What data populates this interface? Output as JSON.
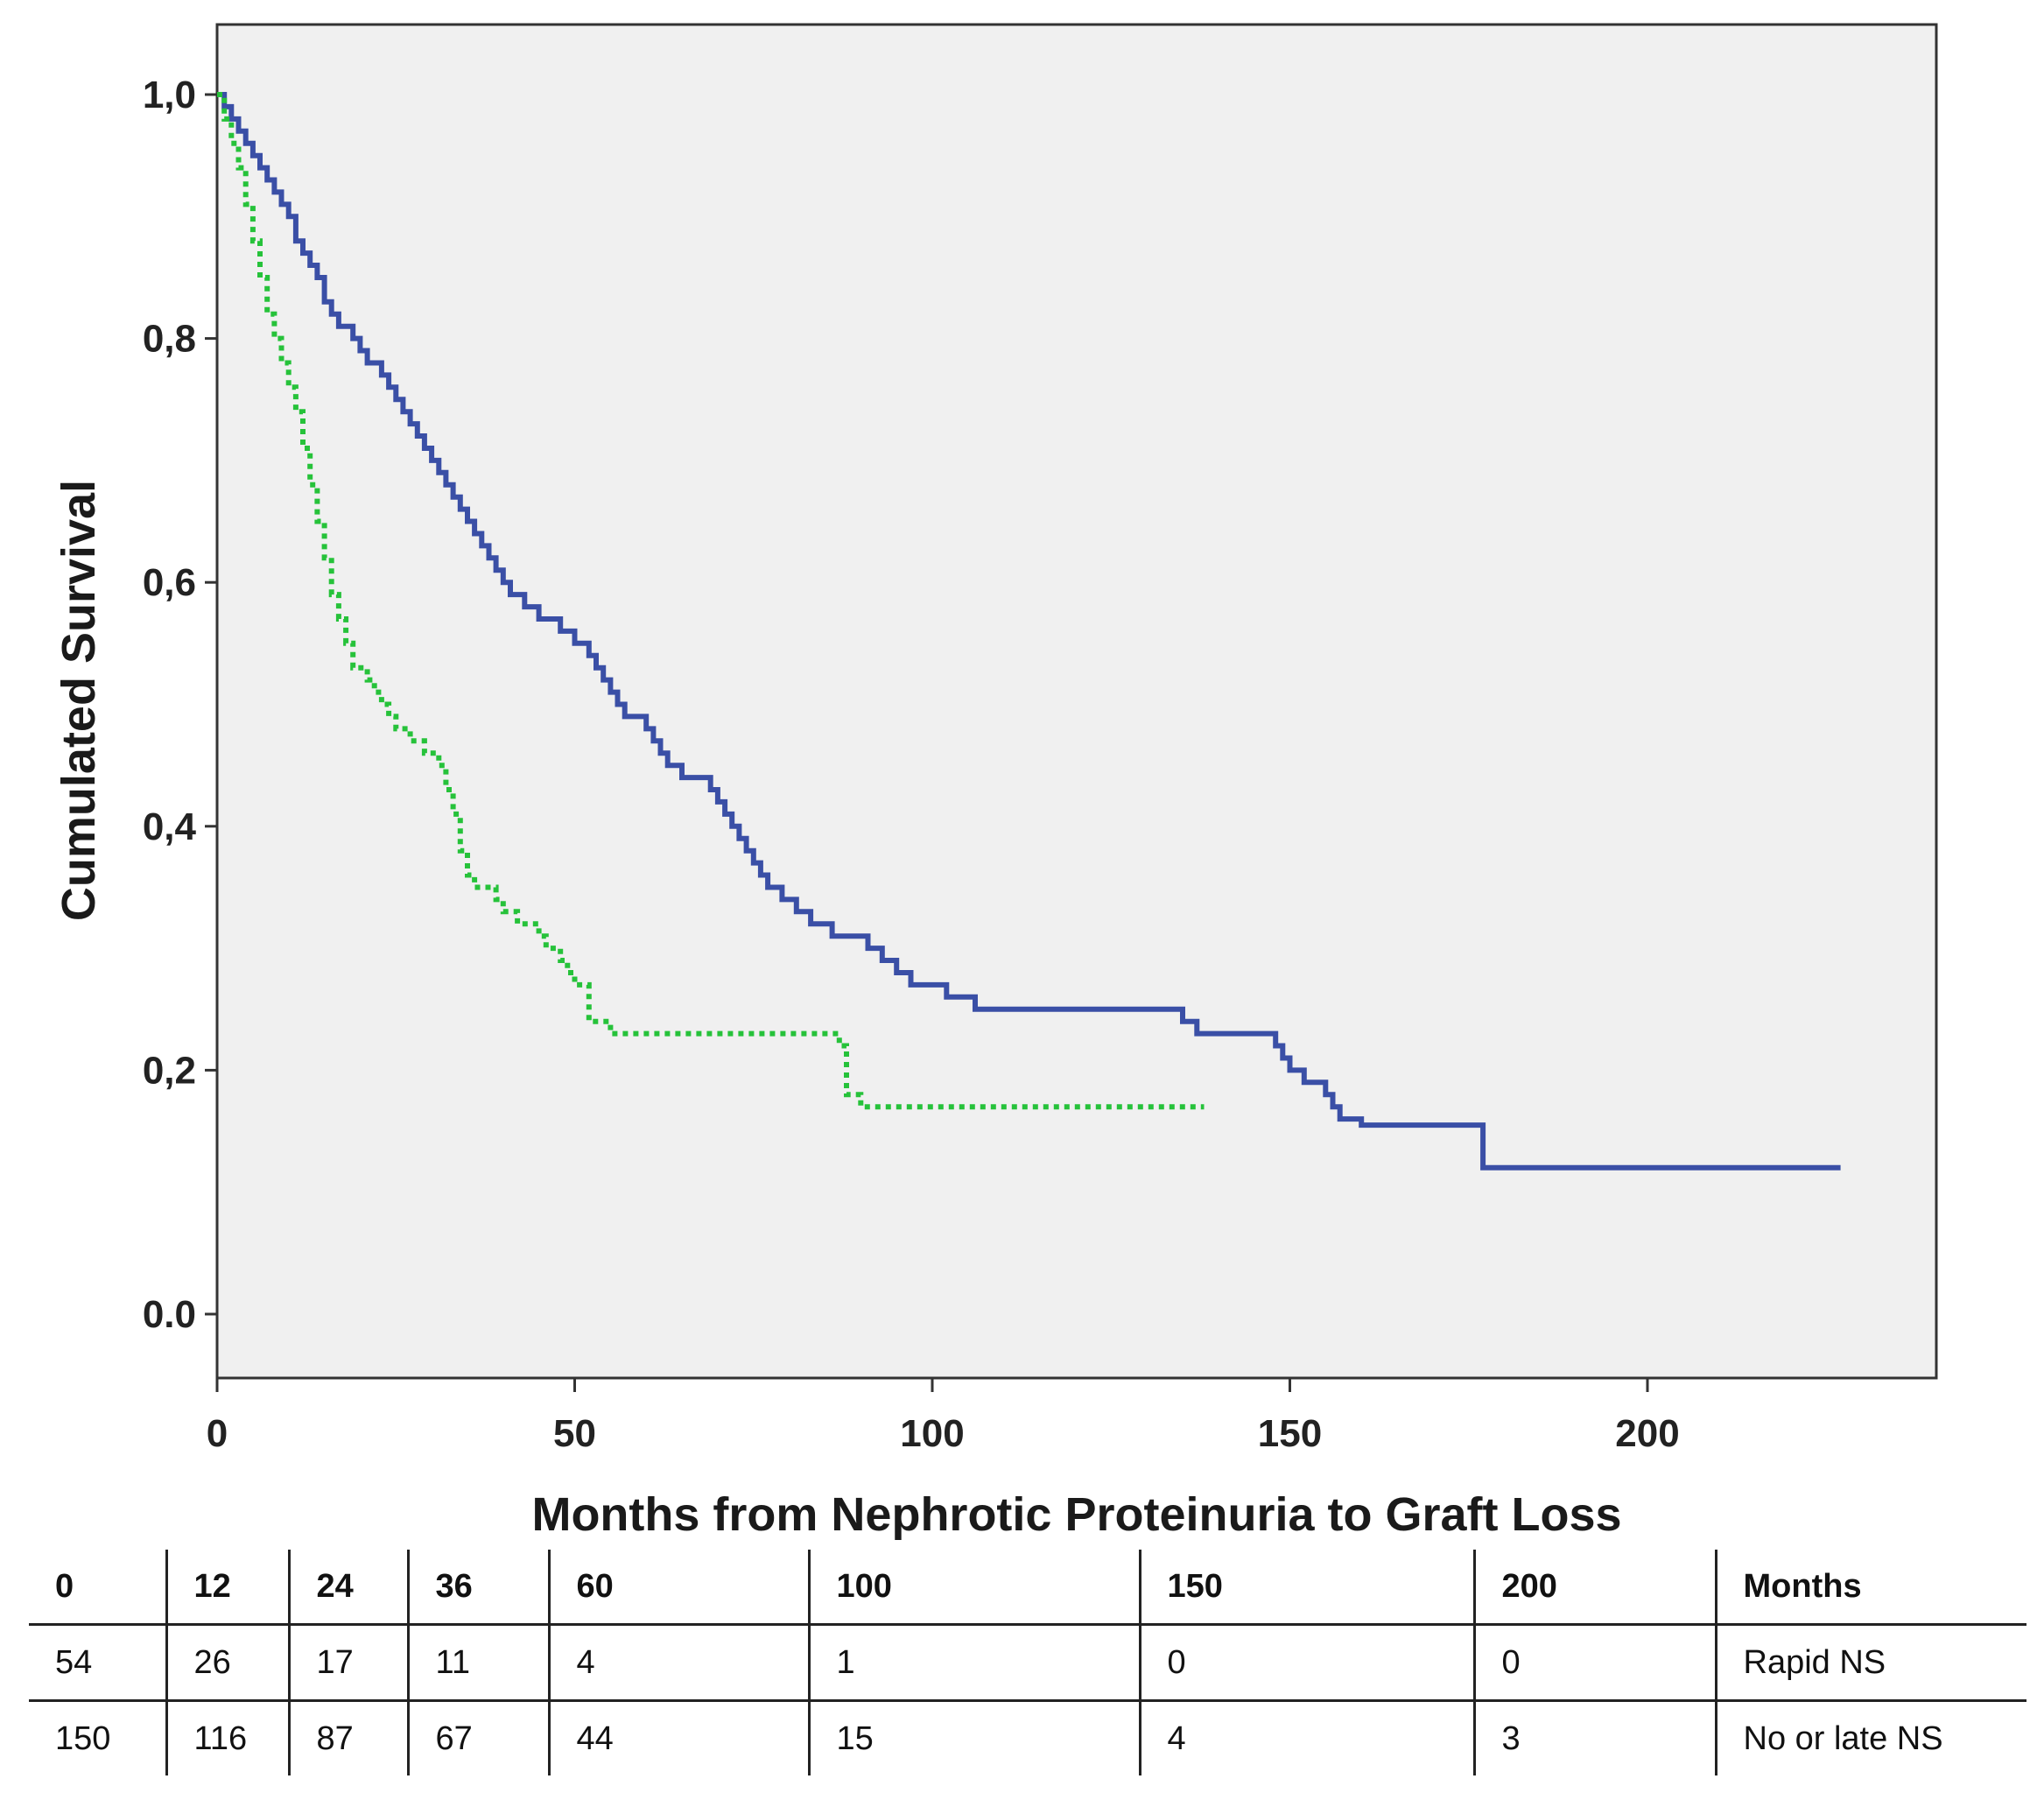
{
  "chart_data": {
    "type": "line",
    "subtype": "kaplan-meier step curves",
    "title": "",
    "xlabel": "Months from Nephrotic Proteinuria to Graft Loss",
    "ylabel": "Cumulated Survival",
    "xlim": [
      0,
      240
    ],
    "ylim": [
      -0.05,
      1.06
    ],
    "x_ticks": [
      0,
      50,
      100,
      150,
      200
    ],
    "x_tick_labels": [
      "0",
      "50",
      "100",
      "150",
      "200"
    ],
    "y_ticks": [
      0.0,
      0.2,
      0.4,
      0.6,
      0.8,
      1.0
    ],
    "y_tick_labels": [
      "0.0",
      "0,2",
      "0,4",
      "0,6",
      "0,8",
      "1,0"
    ],
    "grid": false,
    "background": "#f0f0f0",
    "series": [
      {
        "name": "No or late NS",
        "color": "#3a4fa6",
        "style": "solid",
        "points": [
          [
            0,
            1.0
          ],
          [
            1,
            0.99
          ],
          [
            2,
            0.98
          ],
          [
            3,
            0.97
          ],
          [
            4,
            0.96
          ],
          [
            5,
            0.95
          ],
          [
            6,
            0.94
          ],
          [
            7,
            0.93
          ],
          [
            8,
            0.92
          ],
          [
            9,
            0.91
          ],
          [
            10,
            0.9
          ],
          [
            11,
            0.88
          ],
          [
            12,
            0.87
          ],
          [
            13,
            0.86
          ],
          [
            14,
            0.85
          ],
          [
            15,
            0.83
          ],
          [
            16,
            0.82
          ],
          [
            17,
            0.81
          ],
          [
            19,
            0.8
          ],
          [
            20,
            0.79
          ],
          [
            21,
            0.78
          ],
          [
            23,
            0.77
          ],
          [
            24,
            0.76
          ],
          [
            25,
            0.75
          ],
          [
            26,
            0.74
          ],
          [
            27,
            0.73
          ],
          [
            28,
            0.72
          ],
          [
            29,
            0.71
          ],
          [
            30,
            0.7
          ],
          [
            31,
            0.69
          ],
          [
            32,
            0.68
          ],
          [
            33,
            0.67
          ],
          [
            34,
            0.66
          ],
          [
            35,
            0.65
          ],
          [
            36,
            0.64
          ],
          [
            37,
            0.63
          ],
          [
            38,
            0.62
          ],
          [
            39,
            0.61
          ],
          [
            40,
            0.6
          ],
          [
            41,
            0.59
          ],
          [
            43,
            0.58
          ],
          [
            45,
            0.57
          ],
          [
            48,
            0.56
          ],
          [
            50,
            0.55
          ],
          [
            52,
            0.54
          ],
          [
            53,
            0.53
          ],
          [
            54,
            0.52
          ],
          [
            55,
            0.51
          ],
          [
            56,
            0.5
          ],
          [
            57,
            0.49
          ],
          [
            60,
            0.48
          ],
          [
            61,
            0.47
          ],
          [
            62,
            0.46
          ],
          [
            63,
            0.45
          ],
          [
            65,
            0.44
          ],
          [
            69,
            0.43
          ],
          [
            70,
            0.42
          ],
          [
            71,
            0.41
          ],
          [
            72,
            0.4
          ],
          [
            73,
            0.39
          ],
          [
            74,
            0.38
          ],
          [
            75,
            0.37
          ],
          [
            76,
            0.36
          ],
          [
            77,
            0.35
          ],
          [
            79,
            0.34
          ],
          [
            81,
            0.33
          ],
          [
            83,
            0.32
          ],
          [
            86,
            0.31
          ],
          [
            91,
            0.3
          ],
          [
            93,
            0.29
          ],
          [
            95,
            0.28
          ],
          [
            97,
            0.27
          ],
          [
            102,
            0.26
          ],
          [
            106,
            0.25
          ],
          [
            135,
            0.24
          ],
          [
            137,
            0.23
          ],
          [
            148,
            0.22
          ],
          [
            149,
            0.21
          ],
          [
            150,
            0.2
          ],
          [
            152,
            0.19
          ],
          [
            155,
            0.18
          ],
          [
            156,
            0.17
          ],
          [
            157,
            0.16
          ],
          [
            160,
            0.155
          ],
          [
            177,
            0.12
          ],
          [
            227,
            0.12
          ]
        ]
      },
      {
        "name": "Rapid NS",
        "color": "#26c23a",
        "style": "dotted",
        "points": [
          [
            0,
            1.0
          ],
          [
            1,
            0.98
          ],
          [
            2,
            0.96
          ],
          [
            3,
            0.94
          ],
          [
            4,
            0.91
          ],
          [
            5,
            0.88
          ],
          [
            6,
            0.85
          ],
          [
            7,
            0.82
          ],
          [
            8,
            0.8
          ],
          [
            9,
            0.78
          ],
          [
            10,
            0.76
          ],
          [
            11,
            0.74
          ],
          [
            12,
            0.71
          ],
          [
            13,
            0.68
          ],
          [
            14,
            0.65
          ],
          [
            15,
            0.62
          ],
          [
            16,
            0.59
          ],
          [
            17,
            0.57
          ],
          [
            18,
            0.55
          ],
          [
            19,
            0.53
          ],
          [
            21,
            0.52
          ],
          [
            22,
            0.51
          ],
          [
            23,
            0.5
          ],
          [
            24,
            0.49
          ],
          [
            25,
            0.48
          ],
          [
            27,
            0.47
          ],
          [
            29,
            0.46
          ],
          [
            31,
            0.45
          ],
          [
            32,
            0.43
          ],
          [
            33,
            0.41
          ],
          [
            34,
            0.38
          ],
          [
            35,
            0.36
          ],
          [
            36,
            0.35
          ],
          [
            39,
            0.34
          ],
          [
            40,
            0.33
          ],
          [
            42,
            0.32
          ],
          [
            45,
            0.31
          ],
          [
            46,
            0.3
          ],
          [
            48,
            0.29
          ],
          [
            49,
            0.28
          ],
          [
            50,
            0.27
          ],
          [
            52,
            0.24
          ],
          [
            55,
            0.23
          ],
          [
            87,
            0.22
          ],
          [
            88,
            0.18
          ],
          [
            90,
            0.17
          ],
          [
            138,
            0.17
          ]
        ]
      }
    ],
    "risk_table": {
      "header": [
        "0",
        "12",
        "24",
        "36",
        "60",
        "100",
        "150",
        "200",
        "Months"
      ],
      "rows": [
        [
          "54",
          "26",
          "17",
          "11",
          "4",
          "1",
          "0",
          "0",
          "Rapid NS"
        ],
        [
          "150",
          "116",
          "87",
          "67",
          "44",
          "15",
          "4",
          "3",
          "No or late NS"
        ]
      ]
    }
  }
}
